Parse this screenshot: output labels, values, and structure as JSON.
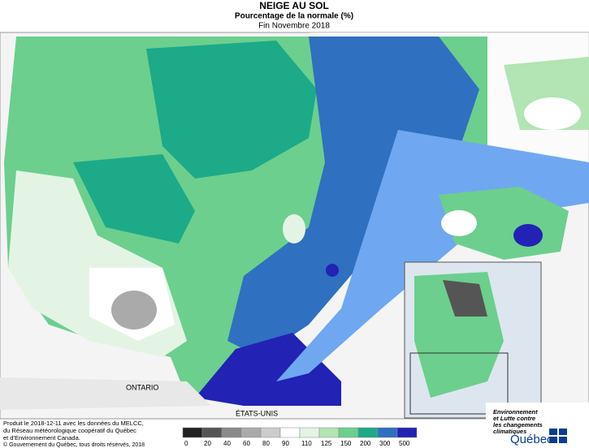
{
  "header": {
    "title": "NEIGE AU SOL",
    "subtitle": "Pourcentage de la normale (%)",
    "period": "Fin Novembre 2018"
  },
  "labels": {
    "ontario": "ONTARIO",
    "usa": "ÉTATS-UNIS"
  },
  "legend": {
    "ticks": [
      0,
      20,
      40,
      60,
      80,
      90,
      110,
      125,
      150,
      200,
      300,
      500
    ],
    "colors": [
      "#222222",
      "#555555",
      "#8a8a8a",
      "#aaaaaa",
      "#cccccc",
      "#ffffff",
      "#e4f4e4",
      "#b2e4b4",
      "#6ccf8e",
      "#1daa88",
      "#2f70c0",
      "#2222b4"
    ]
  },
  "footer": {
    "credit_lines": [
      "Produit le 2018-12-11 avec les données du MELCC,",
      "du Réseau météorologique coopératif du Québec",
      "et d'Environnement Canada."
    ],
    "copyright": "© Gouvernement du Québec, tous droits réservés, 2018"
  },
  "logo": {
    "lines": [
      "Environnement",
      "et Lutte contre",
      "les changements",
      "climatiques"
    ],
    "brand": "Québec"
  }
}
